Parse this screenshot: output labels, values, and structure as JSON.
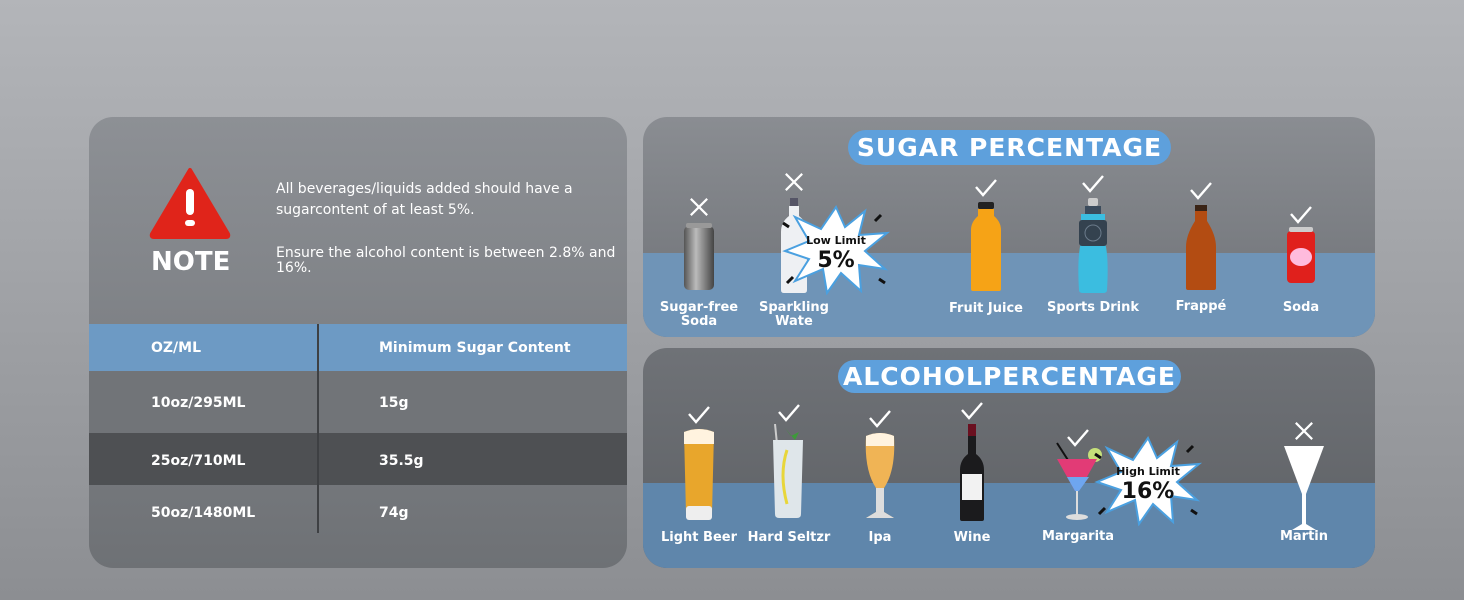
{
  "note": {
    "icon": "warning-triangle-icon",
    "title": "NOTE",
    "message_sugar": "All beverages/liquids added should have a sugarcontent of at least 5%.",
    "message_alcohol": "Ensure the alcohol content is between 2.8% and 16%.",
    "warning_color": "#e0241a"
  },
  "table": {
    "headers": [
      "OZ/ML",
      "Minimum Sugar Content"
    ],
    "rows": [
      [
        "10oz/295ML",
        "15g"
      ],
      [
        "25oz/710ML",
        "35.5g"
      ],
      [
        "50oz/1480ML",
        "74g"
      ]
    ]
  },
  "sugar": {
    "title": "SUGAR PERCENTAGE",
    "limit": {
      "label": "Low Limit",
      "value": "5%"
    },
    "items": [
      {
        "label": "Sugar-free Soda",
        "ok": false,
        "icon": "silver-can"
      },
      {
        "label": "Sparkling Wate",
        "ok": false,
        "icon": "water-bottle"
      },
      {
        "label": "Fruit Juice",
        "ok": true,
        "icon": "juice-bottle"
      },
      {
        "label": "Sports Drink",
        "ok": true,
        "icon": "sports-bottle"
      },
      {
        "label": "Frappé",
        "ok": true,
        "icon": "brown-bottle"
      },
      {
        "label": "Soda",
        "ok": true,
        "icon": "red-can"
      }
    ]
  },
  "alcohol": {
    "title": "ALCOHOLPERCENTAGE",
    "limit": {
      "label": "High Limit",
      "value": "16%"
    },
    "items": [
      {
        "label": "Light Beer",
        "ok": true,
        "icon": "beer-glass"
      },
      {
        "label": "Hard Seltzr",
        "ok": true,
        "icon": "seltzer-glass"
      },
      {
        "label": "Ipa",
        "ok": true,
        "icon": "ipa-glass"
      },
      {
        "label": "Wine",
        "ok": true,
        "icon": "wine-bottle"
      },
      {
        "label": "Margarita",
        "ok": true,
        "icon": "cocktail-glass"
      },
      {
        "label": "Martin",
        "ok": false,
        "icon": "martini-glass"
      }
    ]
  },
  "colors": {
    "accent": "#5ea0dc",
    "band": "#6f94b7",
    "header_row": "#6d9ac4"
  }
}
